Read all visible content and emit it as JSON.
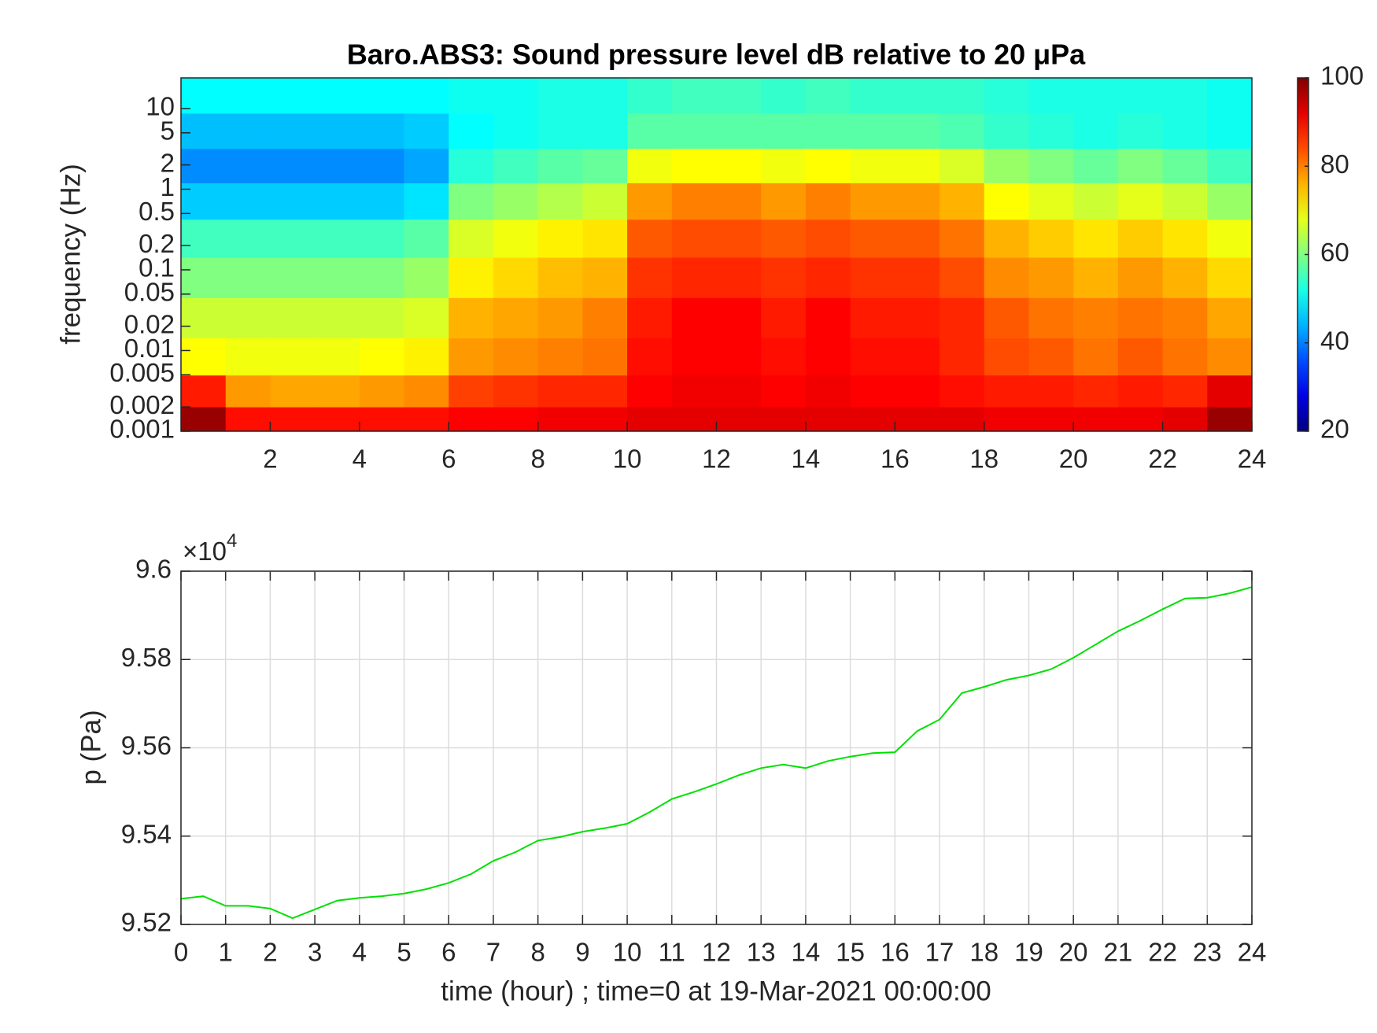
{
  "chart_data": [
    {
      "type": "heatmap",
      "title": "Baro.ABS3: Sound pressure level dB relative to 20 μPa",
      "y_label": "frequency (Hz)",
      "x": [
        0.5,
        1.5,
        2.5,
        3.5,
        4.5,
        5.5,
        6.5,
        7.5,
        8.5,
        9.5,
        10.5,
        11.5,
        12.5,
        13.5,
        14.5,
        15.5,
        16.5,
        17.5,
        18.5,
        19.5,
        20.5,
        21.5,
        22.5,
        23.5
      ],
      "y": [
        15,
        5,
        2,
        0.7,
        0.25,
        0.08,
        0.025,
        0.008,
        0.003,
        0.0013
      ],
      "values": [
        [
          50,
          50,
          50,
          50,
          50,
          50,
          51,
          51,
          52,
          52,
          54,
          55,
          55,
          54,
          55,
          54,
          54,
          54,
          53,
          52,
          52,
          52,
          52,
          51
        ],
        [
          45,
          45,
          45,
          45,
          45,
          46,
          50,
          51,
          52,
          52,
          57,
          57,
          57,
          57,
          57,
          57,
          57,
          56,
          54,
          53,
          52,
          53,
          52,
          51
        ],
        [
          41,
          41,
          41,
          41,
          41,
          43,
          53,
          55,
          57,
          58,
          69,
          70,
          70,
          69,
          70,
          69,
          69,
          67,
          62,
          60,
          58,
          60,
          58,
          55
        ],
        [
          46,
          46,
          46,
          46,
          46,
          48,
          60,
          62,
          64,
          66,
          78,
          80,
          80,
          78,
          80,
          78,
          78,
          76,
          70,
          68,
          66,
          68,
          66,
          62
        ],
        [
          55,
          55,
          55,
          55,
          55,
          57,
          67,
          69,
          71,
          72,
          83,
          84,
          84,
          83,
          84,
          83,
          83,
          81,
          76,
          74,
          72,
          74,
          72,
          69
        ],
        [
          60,
          60,
          60,
          60,
          60,
          62,
          71,
          73,
          75,
          76,
          86,
          87,
          87,
          86,
          87,
          86,
          86,
          84,
          79,
          78,
          76,
          78,
          76,
          73
        ],
        [
          66,
          66,
          66,
          66,
          66,
          67,
          76,
          77,
          78,
          80,
          88,
          90,
          90,
          88,
          90,
          88,
          88,
          87,
          83,
          81,
          80,
          81,
          80,
          77
        ],
        [
          70,
          69,
          69,
          69,
          70,
          71,
          78,
          79,
          80,
          81,
          89,
          90,
          90,
          89,
          90,
          89,
          89,
          87,
          84,
          83,
          81,
          83,
          81,
          79
        ],
        [
          88,
          78,
          77,
          77,
          78,
          79,
          85,
          86,
          87,
          87,
          90,
          91,
          91,
          90,
          91,
          90,
          90,
          89,
          88,
          88,
          87,
          88,
          87,
          92
        ],
        [
          98,
          89,
          89,
          89,
          89,
          89,
          90,
          90,
          91,
          91,
          92,
          92,
          92,
          92,
          92,
          92,
          92,
          92,
          91,
          91,
          91,
          91,
          92,
          98
        ]
      ],
      "xlim": [
        0,
        24
      ],
      "xticks": [
        2,
        4,
        6,
        8,
        10,
        12,
        14,
        16,
        18,
        20,
        22,
        24
      ],
      "ylim": [
        0.001,
        24
      ],
      "yscale": "log",
      "yticks": [
        0.001,
        0.002,
        0.005,
        0.01,
        0.02,
        0.05,
        0.1,
        0.2,
        0.5,
        1,
        2,
        5,
        10
      ],
      "colormap": "jet",
      "clim": [
        20,
        100
      ],
      "cticks": [
        20,
        40,
        60,
        80,
        100
      ]
    },
    {
      "type": "line",
      "x_label": "time (hour) ; time=0 at 19-Mar-2021 00:00:00",
      "y_label": "p (Pa)",
      "y_multiplier": {
        "base": "×10",
        "exponent": "4"
      },
      "x": [
        0,
        0.5,
        1,
        1.5,
        2,
        2.5,
        3,
        3.5,
        4,
        4.5,
        5,
        5.5,
        6,
        6.5,
        7,
        7.5,
        8,
        8.5,
        9,
        9.5,
        10,
        10.5,
        11,
        11.5,
        12,
        12.5,
        13,
        13.5,
        14,
        14.5,
        15,
        15.5,
        16,
        16.5,
        17,
        17.5,
        18,
        18.5,
        19,
        19.5,
        20,
        20.5,
        21,
        21.5,
        22,
        22.5,
        23,
        23.5,
        24
      ],
      "series": [
        {
          "color": "#00e000",
          "values": [
            95258,
            95264,
            95242,
            95242,
            95236,
            95214,
            95234,
            95254,
            95260,
            95264,
            95270,
            95280,
            95294,
            95314,
            95344,
            95364,
            95390,
            95398,
            95410,
            95418,
            95428,
            95454,
            95484,
            95500,
            95518,
            95538,
            95554,
            95562,
            95554,
            95570,
            95580,
            95588,
            95590,
            95638,
            95664,
            95724,
            95738,
            95754,
            95764,
            95778,
            95804,
            95834,
            95864,
            95888,
            95914,
            95938,
            95940,
            95950,
            95964
          ]
        }
      ],
      "xlim": [
        0,
        24
      ],
      "xticks": [
        0,
        1,
        2,
        3,
        4,
        5,
        6,
        7,
        8,
        9,
        10,
        11,
        12,
        13,
        14,
        15,
        16,
        17,
        18,
        19,
        20,
        21,
        22,
        23,
        24
      ],
      "ylim": [
        95200,
        96000
      ],
      "yticks": [
        {
          "value": 95200,
          "label": "9.52"
        },
        {
          "value": 95400,
          "label": "9.54"
        },
        {
          "value": 95600,
          "label": "9.56"
        },
        {
          "value": 95800,
          "label": "9.58"
        },
        {
          "value": 96000,
          "label": "9.6"
        }
      ],
      "grid": true
    }
  ]
}
